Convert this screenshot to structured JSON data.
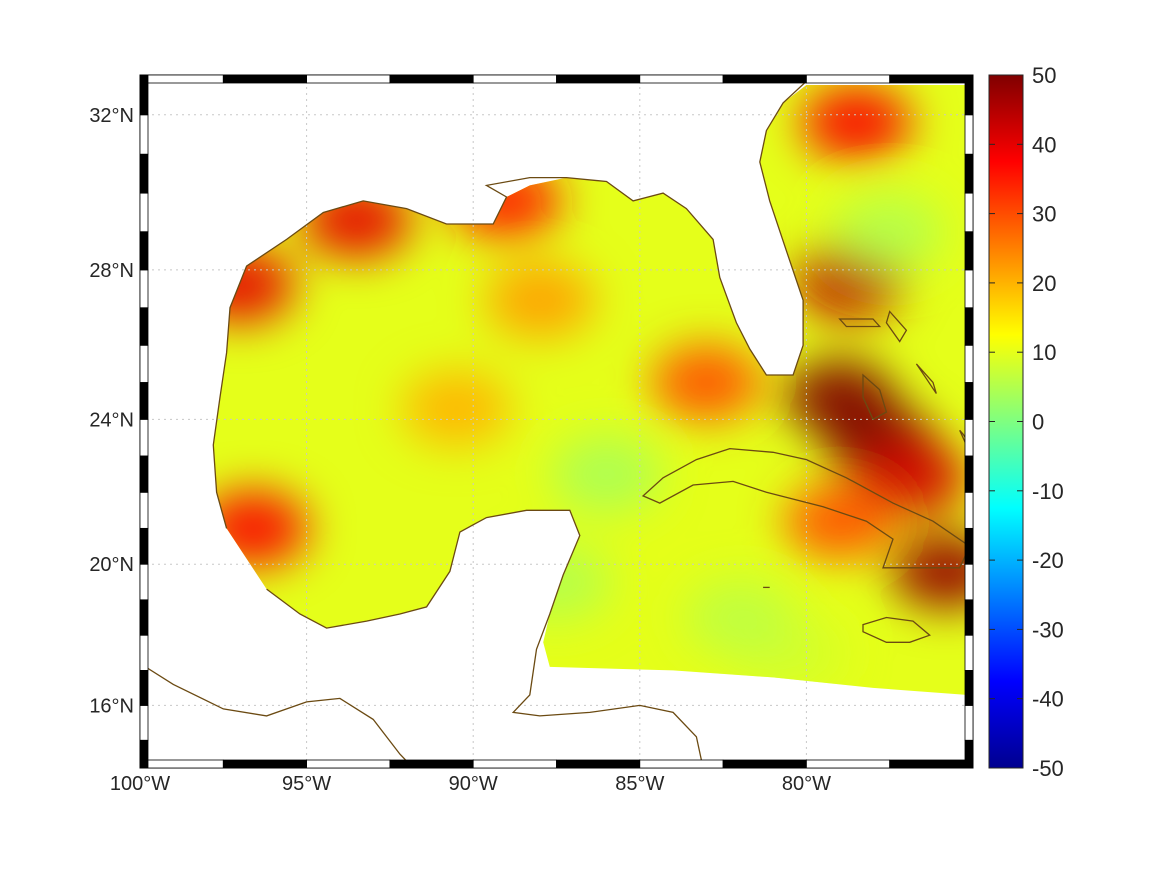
{
  "map": {
    "projection": "mercator",
    "lon_range": [
      -100,
      -75.0
    ],
    "lat_range": [
      14.2,
      33.0
    ],
    "lon_ticks": [
      {
        "value": -100,
        "label": "100°W"
      },
      {
        "value": -95,
        "label": "95°W"
      },
      {
        "value": -90,
        "label": "90°W"
      },
      {
        "value": -85,
        "label": "85°W"
      },
      {
        "value": -80,
        "label": "80°W"
      }
    ],
    "lat_ticks": [
      {
        "value": 32,
        "label": "32°N"
      },
      {
        "value": 28,
        "label": "28°N"
      },
      {
        "value": 24,
        "label": "24°N"
      },
      {
        "value": 20,
        "label": "20°N"
      },
      {
        "value": 16,
        "label": "16°N"
      }
    ],
    "grid": "dotted",
    "frame": "black-white checkered",
    "coastline_color": "#6b4a12",
    "land_color": "#ffffff",
    "region": "Gulf of Mexico and western Caribbean"
  },
  "colorbar": {
    "colormap": "jet",
    "range": [
      -50,
      50
    ],
    "ticks": [
      {
        "value": 50,
        "label": "50"
      },
      {
        "value": 40,
        "label": "40"
      },
      {
        "value": 30,
        "label": "30"
      },
      {
        "value": 20,
        "label": "20"
      },
      {
        "value": 10,
        "label": "10"
      },
      {
        "value": 0,
        "label": "0"
      },
      {
        "value": -10,
        "label": "-10"
      },
      {
        "value": -20,
        "label": "-20"
      },
      {
        "value": -30,
        "label": "-30"
      },
      {
        "value": -40,
        "label": "-40"
      },
      {
        "value": -50,
        "label": "-50"
      }
    ]
  },
  "field": {
    "background_value": 10,
    "features": [
      {
        "lon": -79.0,
        "lat": 24.6,
        "value": 55
      },
      {
        "lon": -77.8,
        "lat": 23.4,
        "value": 50
      },
      {
        "lon": -76.8,
        "lat": 22.4,
        "value": 42
      },
      {
        "lon": -75.8,
        "lat": 19.8,
        "value": 48
      },
      {
        "lon": -78.7,
        "lat": 27.7,
        "value": 44
      },
      {
        "lon": -78.5,
        "lat": 31.8,
        "value": 38
      },
      {
        "lon": -93.5,
        "lat": 29.3,
        "value": 40
      },
      {
        "lon": -89.0,
        "lat": 29.8,
        "value": 35
      },
      {
        "lon": -97.0,
        "lat": 27.6,
        "value": 40
      },
      {
        "lon": -96.6,
        "lat": 21.0,
        "value": 38
      },
      {
        "lon": -83.0,
        "lat": 25.0,
        "value": 30
      },
      {
        "lon": -79.0,
        "lat": 21.2,
        "value": 30
      },
      {
        "lon": -88.0,
        "lat": 27.2,
        "value": 22
      },
      {
        "lon": -90.5,
        "lat": 24.3,
        "value": 20
      },
      {
        "lon": -86.0,
        "lat": 22.5,
        "value": 4
      },
      {
        "lon": -87.5,
        "lat": 19.5,
        "value": 5
      },
      {
        "lon": -77.5,
        "lat": 29.0,
        "value": 5
      },
      {
        "lon": -80.5,
        "lat": 17.5,
        "value": 8
      },
      {
        "lon": -82.0,
        "lat": 18.5,
        "value": 6
      }
    ]
  }
}
